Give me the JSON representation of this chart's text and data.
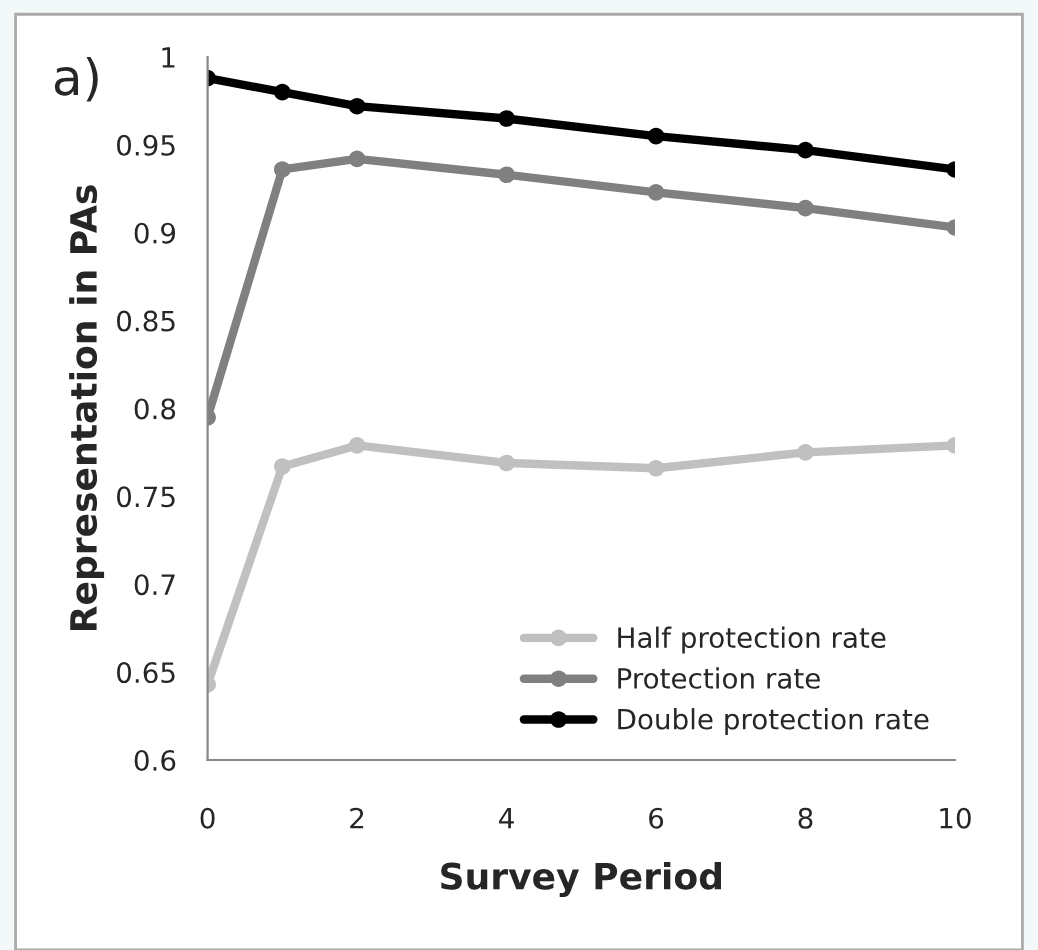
{
  "chart_data": {
    "type": "line",
    "x": [
      0,
      1,
      2,
      4,
      6,
      8,
      10
    ],
    "series": [
      {
        "name": "Half protection rate",
        "color": "#c0c0c0",
        "values": [
          0.643,
          0.767,
          0.779,
          0.769,
          0.766,
          0.775,
          0.779
        ]
      },
      {
        "name": "Protection rate",
        "color": "#808080",
        "values": [
          0.795,
          0.936,
          0.942,
          0.933,
          0.923,
          0.914,
          0.903
        ]
      },
      {
        "name": "Double protection rate",
        "color": "#000000",
        "values": [
          0.988,
          0.98,
          0.972,
          0.965,
          0.955,
          0.947,
          0.936
        ]
      }
    ],
    "xlabel": "Survey Period",
    "ylabel": "Representation in PAs",
    "annotations": [
      "a)"
    ],
    "xlim": [
      0,
      10
    ],
    "xticks": [
      0,
      2,
      4,
      6,
      8,
      10
    ],
    "ylim": [
      0.6,
      1
    ],
    "yticks": [
      0.6,
      0.65,
      0.7,
      0.75,
      0.8,
      0.85,
      0.9,
      0.95,
      1
    ],
    "grid": false,
    "legend": "bottom right",
    "marker": "circle",
    "line_style": "solid"
  }
}
